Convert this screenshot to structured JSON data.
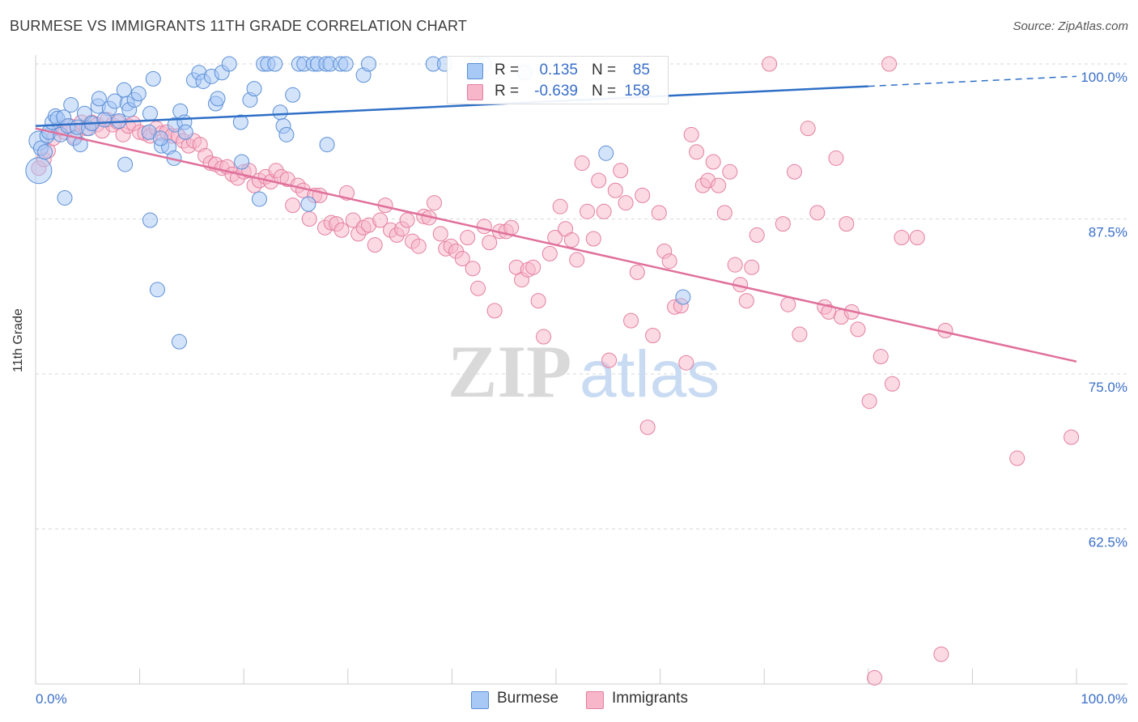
{
  "header": {
    "title": "BURMESE VS IMMIGRANTS 11TH GRADE CORRELATION CHART",
    "source": "Source: ZipAtlas.com"
  },
  "watermark": {
    "zip": "ZIP",
    "atlas": "atlas"
  },
  "legend": {
    "rows": [
      {
        "r_label": "R =",
        "r_value": "0.135",
        "n_label": "N =",
        "n_value": "85",
        "color": "#a8c8f5"
      },
      {
        "r_label": "R =",
        "r_value": "-0.639",
        "n_label": "N =",
        "n_value": "158",
        "color": "#f7b6c9"
      }
    ]
  },
  "bottom_legend": [
    {
      "label": "Burmese",
      "color": "#a8c8f5"
    },
    {
      "label": "Immigrants",
      "color": "#f7b6c9"
    }
  ],
  "colors": {
    "blue_point_fill": "#a8c8f5",
    "blue_point_stroke": "#5b8fd6",
    "blue_line": "#2f6fc6",
    "pink_point_fill": "#f7b6c9",
    "pink_point_stroke": "#e47fa0",
    "pink_line": "#e0709a",
    "tick_label": "#3a6fc9",
    "grid": "#d8d8d8"
  },
  "chart_data": {
    "type": "scatter",
    "title": "BURMESE VS IMMIGRANTS 11TH GRADE CORRELATION CHART",
    "xlabel": "",
    "ylabel": "11th Grade",
    "xlim": [
      0,
      100
    ],
    "ylim": [
      50,
      100
    ],
    "x_tick_labels": [
      "0.0%",
      "100.0%"
    ],
    "y_ticks": [
      62.5,
      75.0,
      87.5,
      100.0
    ],
    "y_tick_labels": [
      "62.5%",
      "75.0%",
      "87.5%",
      "100.0%"
    ],
    "grid": "horizontal dashed",
    "legend_position": "top-center",
    "series": [
      {
        "name": "Burmese",
        "r": 0.135,
        "n": 85,
        "trend": {
          "x0": 0,
          "y0": 95.0,
          "x1": 80,
          "y1": 98.2,
          "dashed_to_x": 100,
          "dashed_to_y": 99.0
        },
        "points": [
          [
            0.3,
            93.8
          ],
          [
            0.3,
            91.4
          ],
          [
            0.5,
            93.2
          ],
          [
            0.9,
            92.9
          ],
          [
            1.1,
            94.2
          ],
          [
            1.3,
            94.5
          ],
          [
            1.6,
            95.3
          ],
          [
            1.9,
            95.8
          ],
          [
            2.1,
            95.6
          ],
          [
            2.4,
            94.3
          ],
          [
            2.7,
            95.7
          ],
          [
            3.1,
            95.0
          ],
          [
            3.4,
            96.7
          ],
          [
            3.7,
            94.0
          ],
          [
            4.0,
            94.9
          ],
          [
            4.3,
            93.5
          ],
          [
            4.7,
            96.0
          ],
          [
            5.1,
            94.8
          ],
          [
            5.4,
            95.2
          ],
          [
            6.0,
            96.6
          ],
          [
            6.1,
            97.2
          ],
          [
            7.1,
            96.4
          ],
          [
            7.6,
            97.0
          ],
          [
            6.6,
            95.5
          ],
          [
            8.5,
            97.9
          ],
          [
            8.8,
            96.8
          ],
          [
            9.0,
            96.3
          ],
          [
            9.5,
            97.1
          ],
          [
            9.9,
            97.6
          ],
          [
            11.0,
            96.0
          ],
          [
            11.3,
            98.8
          ],
          [
            12.1,
            93.4
          ],
          [
            13.4,
            95.1
          ],
          [
            13.9,
            96.2
          ],
          [
            14.3,
            95.3
          ],
          [
            15.2,
            98.7
          ],
          [
            15.7,
            99.3
          ],
          [
            16.1,
            98.6
          ],
          [
            16.9,
            99.0
          ],
          [
            17.3,
            96.8
          ],
          [
            17.5,
            97.2
          ],
          [
            17.9,
            99.3
          ],
          [
            18.6,
            100.0
          ],
          [
            19.7,
            95.3
          ],
          [
            19.8,
            92.1
          ],
          [
            20.6,
            97.1
          ],
          [
            21.0,
            98.0
          ],
          [
            21.5,
            89.1
          ],
          [
            21.9,
            100.0
          ],
          [
            22.3,
            100.0
          ],
          [
            23.0,
            100.0
          ],
          [
            23.5,
            96.1
          ],
          [
            23.8,
            95.0
          ],
          [
            24.1,
            94.3
          ],
          [
            24.7,
            97.5
          ],
          [
            25.3,
            100.0
          ],
          [
            25.8,
            100.0
          ],
          [
            26.2,
            88.7
          ],
          [
            26.7,
            100.0
          ],
          [
            27.1,
            100.0
          ],
          [
            27.9,
            100.0
          ],
          [
            28.3,
            100.0
          ],
          [
            28.0,
            93.5
          ],
          [
            29.3,
            100.0
          ],
          [
            29.8,
            100.0
          ],
          [
            31.5,
            99.1
          ],
          [
            32.0,
            100.0
          ],
          [
            38.2,
            100.0
          ],
          [
            39.3,
            100.0
          ],
          [
            42.4,
            100.0
          ],
          [
            43.1,
            100.0
          ],
          [
            47.0,
            99.3
          ],
          [
            2.8,
            89.2
          ],
          [
            11.0,
            87.4
          ],
          [
            11.7,
            81.8
          ],
          [
            13.8,
            77.6
          ],
          [
            8.6,
            91.9
          ],
          [
            12.8,
            93.3
          ],
          [
            13.3,
            92.4
          ],
          [
            10.9,
            94.5
          ],
          [
            14.4,
            94.5
          ],
          [
            12.0,
            94.0
          ],
          [
            54.8,
            92.8
          ],
          [
            62.2,
            81.2
          ],
          [
            8.0,
            95.4
          ]
        ]
      },
      {
        "name": "Immigrants",
        "r": -0.639,
        "n": 158,
        "trend": {
          "x0": 0,
          "y0": 94.8,
          "x1": 100,
          "y1": 76.0
        },
        "points": [
          [
            0.3,
            91.6
          ],
          [
            0.8,
            92.3
          ],
          [
            1.2,
            93.0
          ],
          [
            1.7,
            94.0
          ],
          [
            2.3,
            94.8
          ],
          [
            2.8,
            94.5
          ],
          [
            3.3,
            95.0
          ],
          [
            3.8,
            94.1
          ],
          [
            4.4,
            95.3
          ],
          [
            4.9,
            94.8
          ],
          [
            5.4,
            95.3
          ],
          [
            5.9,
            95.1
          ],
          [
            6.4,
            94.6
          ],
          [
            6.9,
            95.5
          ],
          [
            7.4,
            95.1
          ],
          [
            7.9,
            95.3
          ],
          [
            8.4,
            94.3
          ],
          [
            8.9,
            95.0
          ],
          [
            9.4,
            95.2
          ],
          [
            10.0,
            94.5
          ],
          [
            10.5,
            94.4
          ],
          [
            11.0,
            94.2
          ],
          [
            11.6,
            94.8
          ],
          [
            12.1,
            94.4
          ],
          [
            12.6,
            94.5
          ],
          [
            13.1,
            94.2
          ],
          [
            13.7,
            94.2
          ],
          [
            14.2,
            93.8
          ],
          [
            14.7,
            93.4
          ],
          [
            15.2,
            93.8
          ],
          [
            15.8,
            93.5
          ],
          [
            16.3,
            92.6
          ],
          [
            16.8,
            92.0
          ],
          [
            17.3,
            91.9
          ],
          [
            17.9,
            91.6
          ],
          [
            18.4,
            91.7
          ],
          [
            18.9,
            91.1
          ],
          [
            19.4,
            90.8
          ],
          [
            20.0,
            91.3
          ],
          [
            20.5,
            91.4
          ],
          [
            21.0,
            90.2
          ],
          [
            21.5,
            90.6
          ],
          [
            22.1,
            90.9
          ],
          [
            22.6,
            90.5
          ],
          [
            23.1,
            91.4
          ],
          [
            23.6,
            90.9
          ],
          [
            24.2,
            90.7
          ],
          [
            24.7,
            88.6
          ],
          [
            25.2,
            90.2
          ],
          [
            25.7,
            89.8
          ],
          [
            26.3,
            87.5
          ],
          [
            26.8,
            89.4
          ],
          [
            27.3,
            89.4
          ],
          [
            27.8,
            86.8
          ],
          [
            28.4,
            87.2
          ],
          [
            28.9,
            87.1
          ],
          [
            29.4,
            86.6
          ],
          [
            29.9,
            89.6
          ],
          [
            30.5,
            87.4
          ],
          [
            31.0,
            86.3
          ],
          [
            31.5,
            86.8
          ],
          [
            32.0,
            87.0
          ],
          [
            32.6,
            85.4
          ],
          [
            33.1,
            87.4
          ],
          [
            33.6,
            88.6
          ],
          [
            34.1,
            86.6
          ],
          [
            34.7,
            86.2
          ],
          [
            35.2,
            86.7
          ],
          [
            35.7,
            87.4
          ],
          [
            36.2,
            85.7
          ],
          [
            36.8,
            85.3
          ],
          [
            37.3,
            87.7
          ],
          [
            37.8,
            87.6
          ],
          [
            38.3,
            88.8
          ],
          [
            38.9,
            86.3
          ],
          [
            39.4,
            85.1
          ],
          [
            39.9,
            85.3
          ],
          [
            40.4,
            84.9
          ],
          [
            41.0,
            84.3
          ],
          [
            41.5,
            86.0
          ],
          [
            42.0,
            83.5
          ],
          [
            42.5,
            81.9
          ],
          [
            43.1,
            86.9
          ],
          [
            43.6,
            85.6
          ],
          [
            44.1,
            80.1
          ],
          [
            44.6,
            86.5
          ],
          [
            45.2,
            86.5
          ],
          [
            45.7,
            86.8
          ],
          [
            46.2,
            83.6
          ],
          [
            46.7,
            82.6
          ],
          [
            47.3,
            83.4
          ],
          [
            47.8,
            83.6
          ],
          [
            48.3,
            80.9
          ],
          [
            48.8,
            78.0
          ],
          [
            49.4,
            84.7
          ],
          [
            49.9,
            86.0
          ],
          [
            50.4,
            88.5
          ],
          [
            50.9,
            86.7
          ],
          [
            51.5,
            85.8
          ],
          [
            52.0,
            84.2
          ],
          [
            52.5,
            92.0
          ],
          [
            53.0,
            88.1
          ],
          [
            53.6,
            85.9
          ],
          [
            54.1,
            90.6
          ],
          [
            54.6,
            88.1
          ],
          [
            55.1,
            76.1
          ],
          [
            55.7,
            89.8
          ],
          [
            56.2,
            91.4
          ],
          [
            56.7,
            88.8
          ],
          [
            57.2,
            79.3
          ],
          [
            57.8,
            83.2
          ],
          [
            58.3,
            89.4
          ],
          [
            58.8,
            70.7
          ],
          [
            59.3,
            78.1
          ],
          [
            59.9,
            88.0
          ],
          [
            60.4,
            84.9
          ],
          [
            60.9,
            84.1
          ],
          [
            61.4,
            80.4
          ],
          [
            62.0,
            80.5
          ],
          [
            62.5,
            75.9
          ],
          [
            63.0,
            94.3
          ],
          [
            63.5,
            92.9
          ],
          [
            64.1,
            90.2
          ],
          [
            64.6,
            90.6
          ],
          [
            65.1,
            92.1
          ],
          [
            65.6,
            90.2
          ],
          [
            66.2,
            88.0
          ],
          [
            66.7,
            91.3
          ],
          [
            67.2,
            83.8
          ],
          [
            67.7,
            82.2
          ],
          [
            68.3,
            80.9
          ],
          [
            68.8,
            83.6
          ],
          [
            69.3,
            86.2
          ],
          [
            70.5,
            100.0
          ],
          [
            71.8,
            87.1
          ],
          [
            72.3,
            80.6
          ],
          [
            72.9,
            91.3
          ],
          [
            73.4,
            78.2
          ],
          [
            74.2,
            94.8
          ],
          [
            75.1,
            88.0
          ],
          [
            75.8,
            80.4
          ],
          [
            76.2,
            80.0
          ],
          [
            76.9,
            92.4
          ],
          [
            77.4,
            79.6
          ],
          [
            77.9,
            87.1
          ],
          [
            78.4,
            80.0
          ],
          [
            79.0,
            78.6
          ],
          [
            80.1,
            72.8
          ],
          [
            81.2,
            76.4
          ],
          [
            82.3,
            74.2
          ],
          [
            83.2,
            86.0
          ],
          [
            84.7,
            86.0
          ],
          [
            87.4,
            78.5
          ],
          [
            94.3,
            68.2
          ],
          [
            99.5,
            69.9
          ],
          [
            80.6,
            50.5
          ],
          [
            87.0,
            52.4
          ],
          [
            82.0,
            100.0
          ]
        ]
      }
    ]
  }
}
